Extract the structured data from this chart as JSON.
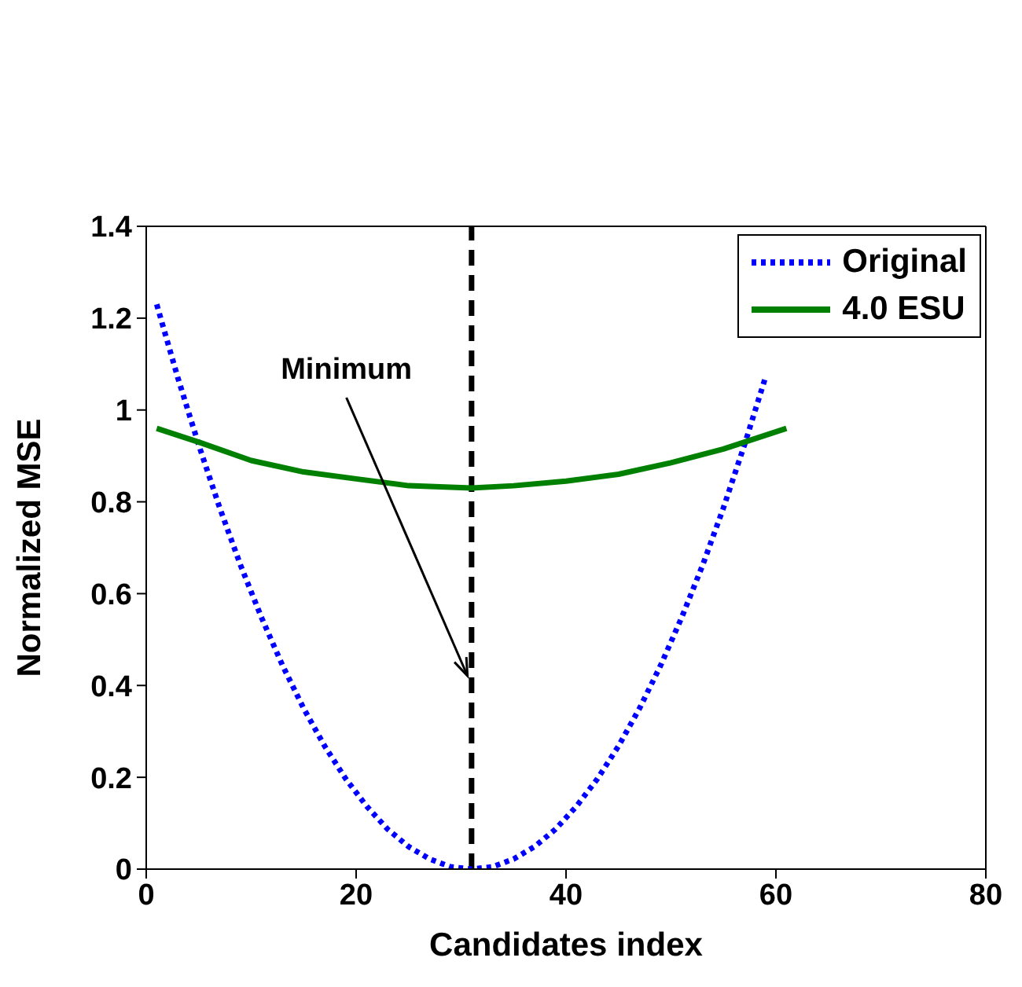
{
  "chart_data": {
    "type": "line",
    "xlabel": "Candidates index",
    "ylabel": "Normalized MSE",
    "xlim": [
      0,
      80
    ],
    "xticks": [
      0,
      20,
      40,
      60,
      80
    ],
    "ylim": [
      0,
      1.4
    ],
    "yticks": [
      0,
      0.2,
      0.4,
      0.6,
      0.8,
      1,
      1.2,
      1.4
    ],
    "grid": false,
    "legend": "top right",
    "marker": "none",
    "series": [
      {
        "name": "Original",
        "color": "#0000ff",
        "line_style": "dotted",
        "x": [
          1,
          3,
          5,
          7,
          9,
          11,
          13,
          15,
          17,
          19,
          21,
          23,
          25,
          27,
          29,
          31,
          33,
          35,
          37,
          39,
          41,
          43,
          45,
          47,
          49,
          51,
          53,
          55,
          57,
          59
        ],
        "values": [
          1.23,
          1.071,
          0.924,
          0.787,
          0.661,
          0.547,
          0.443,
          0.35,
          0.268,
          0.197,
          0.137,
          0.087,
          0.049,
          0.022,
          0.005,
          0,
          0.005,
          0.022,
          0.049,
          0.087,
          0.137,
          0.197,
          0.268,
          0.35,
          0.443,
          0.547,
          0.661,
          0.787,
          0.924,
          1.071
        ]
      },
      {
        "name": "4.0 ESU",
        "color": "#008000",
        "line_style": "solid",
        "x": [
          1,
          5,
          10,
          15,
          20,
          25,
          31,
          35,
          40,
          45,
          50,
          55,
          61
        ],
        "values": [
          0.96,
          0.93,
          0.89,
          0.865,
          0.85,
          0.835,
          0.83,
          0.835,
          0.845,
          0.86,
          0.885,
          0.915,
          0.96
        ]
      }
    ],
    "ref_lines": [
      {
        "axis": "x",
        "value": 31,
        "color": "#000000",
        "line_style": "dashed"
      }
    ],
    "annotations": [
      {
        "text": "Minimum",
        "x": 31,
        "y": 0.42
      }
    ]
  }
}
